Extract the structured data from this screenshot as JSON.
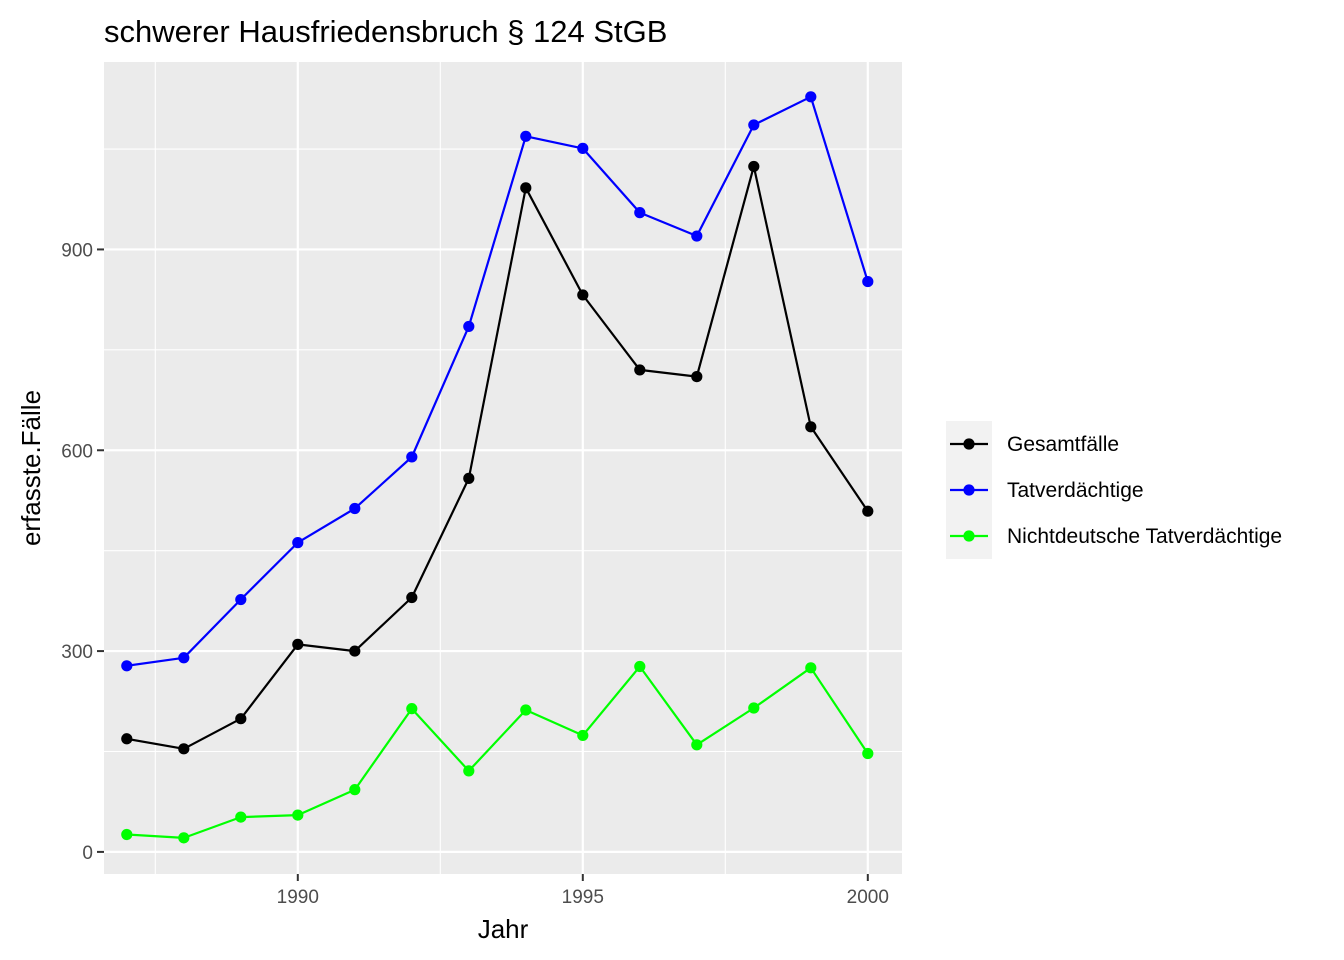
{
  "chart_data": {
    "type": "line",
    "title": "schwerer Hausfriedensbruch § 124 StGB",
    "xlabel": "Jahr",
    "ylabel": "erfasste.Fälle",
    "x": [
      1987,
      1988,
      1989,
      1990,
      1991,
      1992,
      1993,
      1994,
      1995,
      1996,
      1997,
      1998,
      1999,
      2000
    ],
    "xlim": [
      1986.6,
      2000.6
    ],
    "ylim": [
      -33,
      1180
    ],
    "x_ticks": [
      1990,
      1995,
      2000
    ],
    "y_ticks": [
      0,
      300,
      600,
      900
    ],
    "grid": true,
    "legend_position": "right",
    "series": [
      {
        "name": "Gesamtfälle",
        "color": "#000000",
        "values": [
          169,
          154,
          199,
          310,
          300,
          380,
          558,
          992,
          832,
          720,
          710,
          1024,
          635,
          509
        ]
      },
      {
        "name": "Tatverdächtige",
        "color": "#0000ff",
        "values": [
          278,
          290,
          377,
          462,
          513,
          590,
          785,
          1069,
          1051,
          955,
          920,
          1086,
          1128,
          852
        ]
      },
      {
        "name": "Nichtdeutsche Tatverdächtige",
        "color": "#00ff00",
        "values": [
          26,
          21,
          52,
          55,
          93,
          214,
          121,
          212,
          174,
          277,
          160,
          215,
          275,
          147
        ]
      }
    ]
  }
}
